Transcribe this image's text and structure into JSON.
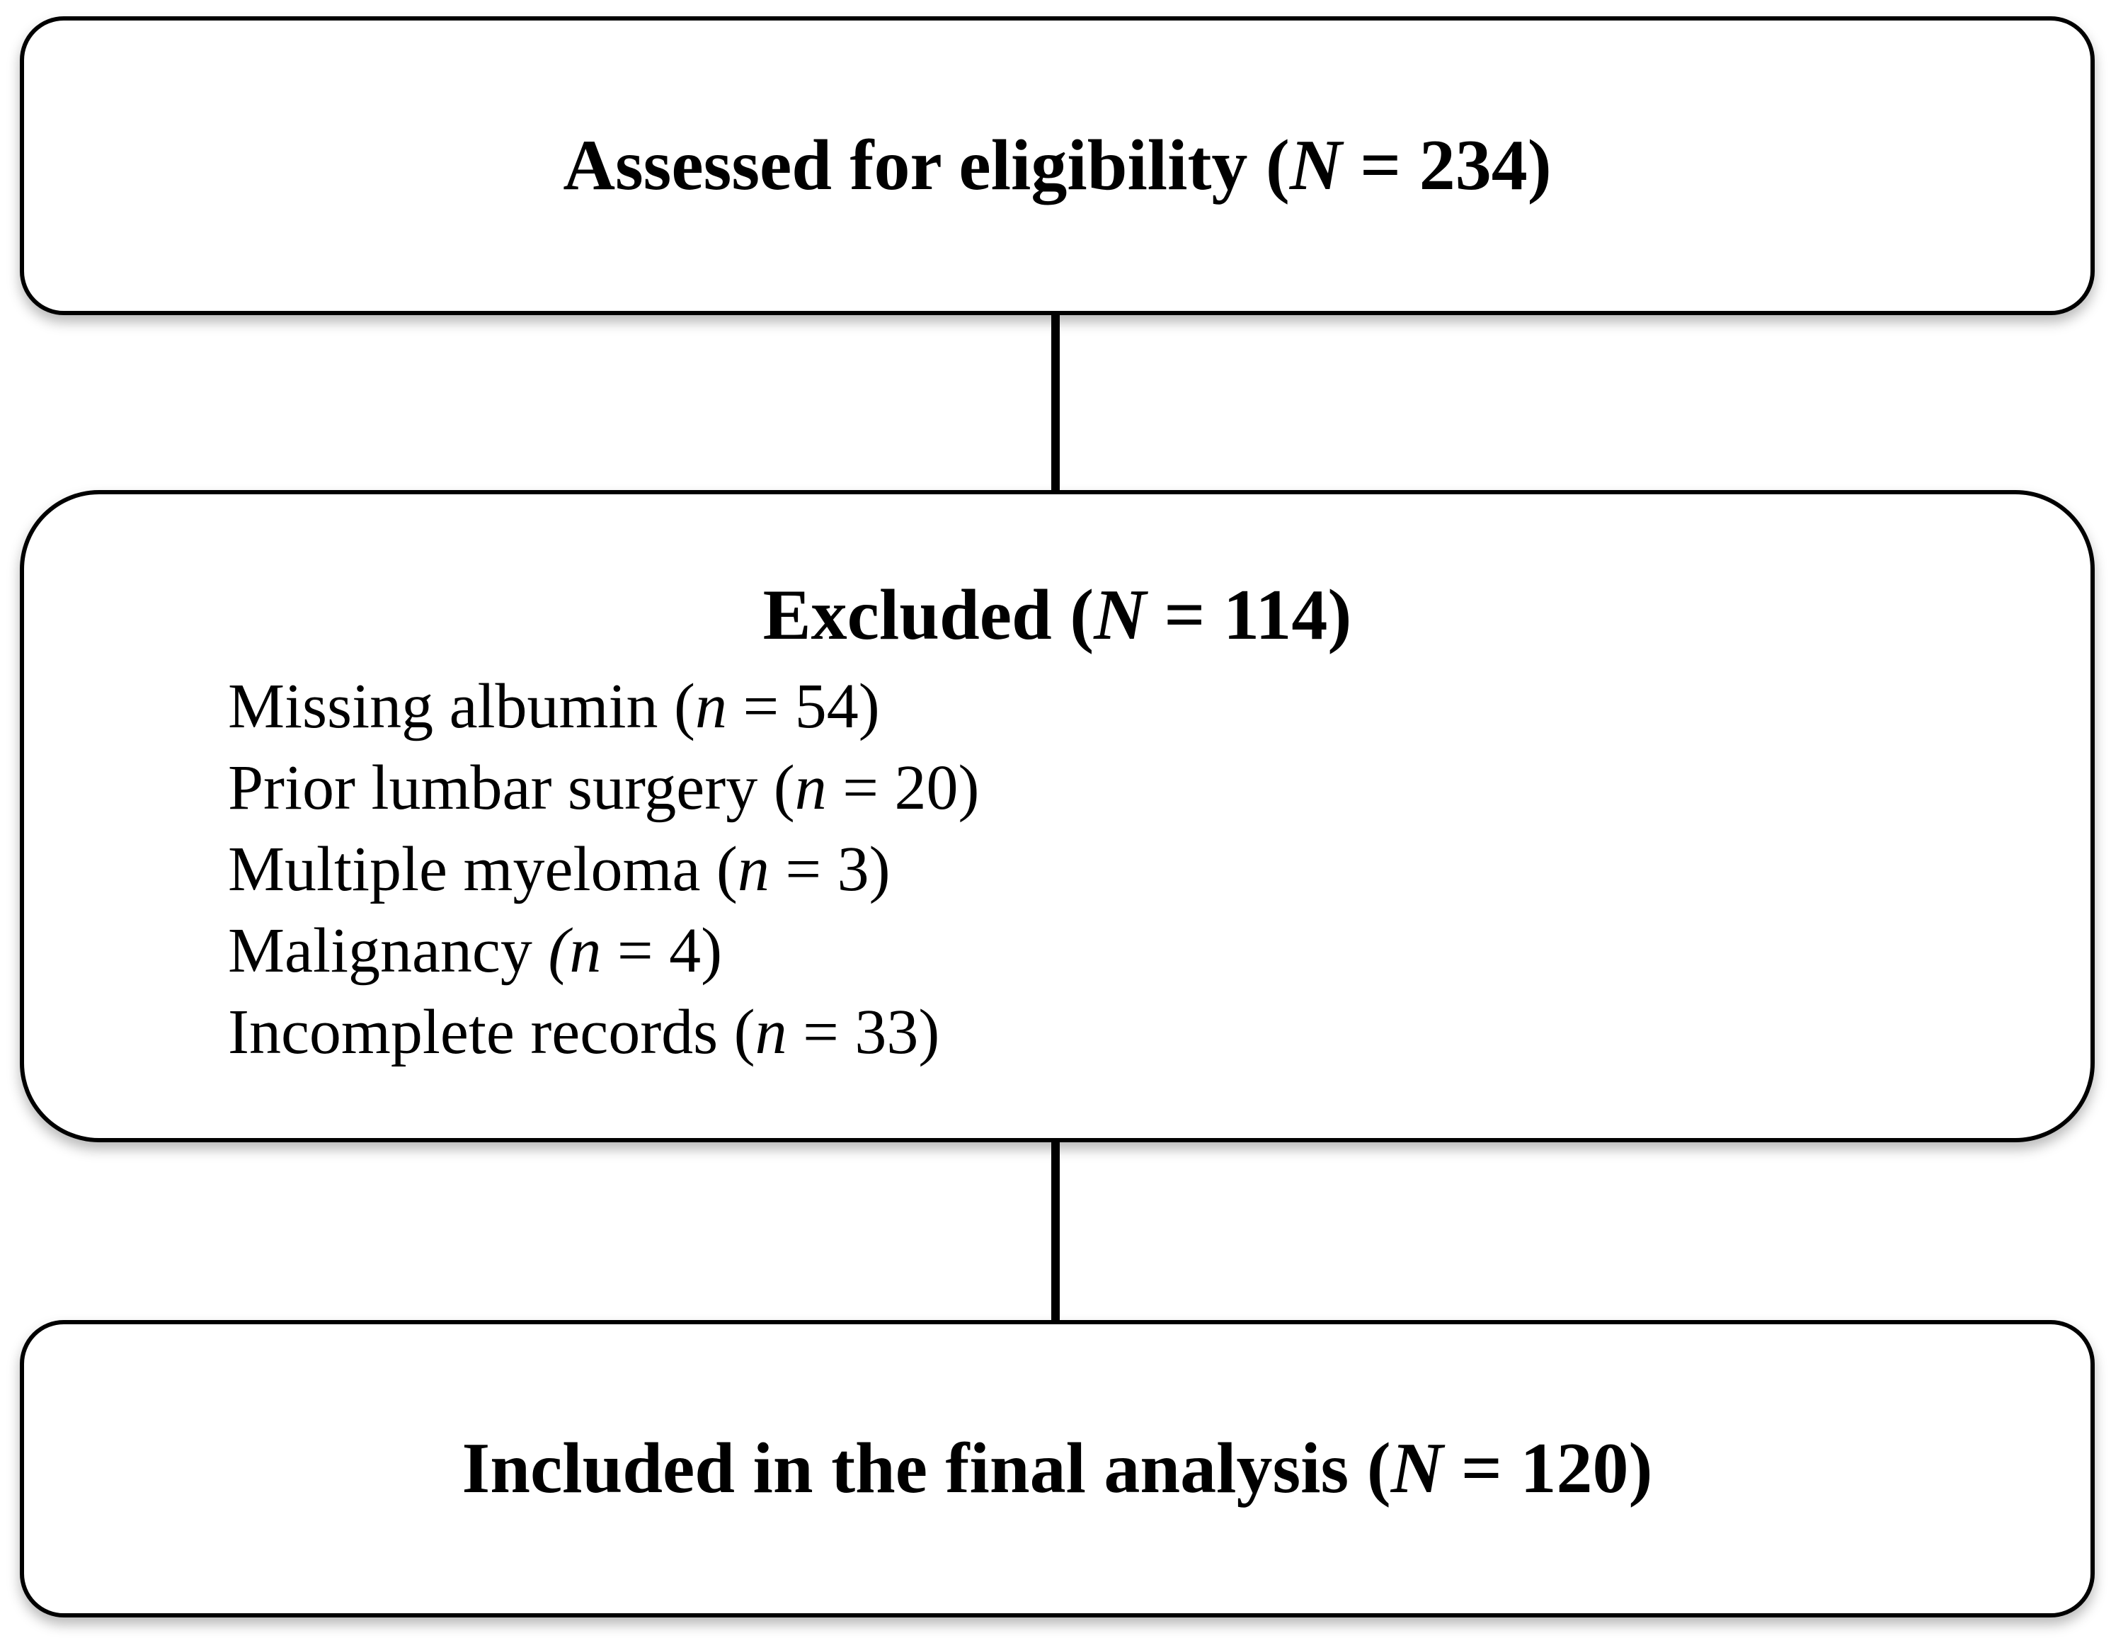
{
  "flowchart": {
    "colors": {
      "background": "#ffffff",
      "border": "#000000",
      "text": "#000000"
    },
    "boxes": [
      {
        "name": "assessed-for-eligibility",
        "heading_plain": "Assessed for eligibility (N = 234)",
        "total": 234,
        "heading_segments": [
          {
            "text": "Assessed for eligibility ("
          },
          {
            "text": "N",
            "italic": true
          },
          {
            "text": " = 234)"
          }
        ]
      },
      {
        "name": "excluded",
        "heading_plain": "Excluded (N = 114)",
        "total": 114,
        "heading_segments": [
          {
            "text": "Excluded ("
          },
          {
            "text": "N",
            "italic": true
          },
          {
            "text": " = 114)"
          }
        ],
        "items_plain": [
          "Missing albumin (n = 54)",
          "Prior lumbar surgery (n = 20)",
          "Multiple myeloma (n = 3)",
          "Malignancy (n = 4)",
          "Incomplete records (n = 33)"
        ],
        "items": [
          [
            {
              "text": "Missing albumin ("
            },
            {
              "text": "n",
              "italic": true
            },
            {
              "text": " = 54)"
            }
          ],
          [
            {
              "text": "Prior lumbar surgery ("
            },
            {
              "text": "n",
              "italic": true
            },
            {
              "text": " = 20)"
            }
          ],
          [
            {
              "text": "Multiple myeloma ("
            },
            {
              "text": "n",
              "italic": true
            },
            {
              "text": " = 3)"
            }
          ],
          [
            {
              "text": "Malignancy "
            },
            {
              "text": "(n",
              "italic": true
            },
            {
              "text": " = 4)"
            }
          ],
          [
            {
              "text": "Incomplete records ("
            },
            {
              "text": "n",
              "italic": true
            },
            {
              "text": " = 33)"
            }
          ]
        ]
      },
      {
        "name": "included-in-final-analysis",
        "heading_plain": "Included in the final analysis (N = 120)",
        "total": 120,
        "heading_segments": [
          {
            "text": "Included in the final analysis ("
          },
          {
            "text": "N",
            "italic": true
          },
          {
            "text": " = 120)"
          }
        ]
      }
    ]
  }
}
